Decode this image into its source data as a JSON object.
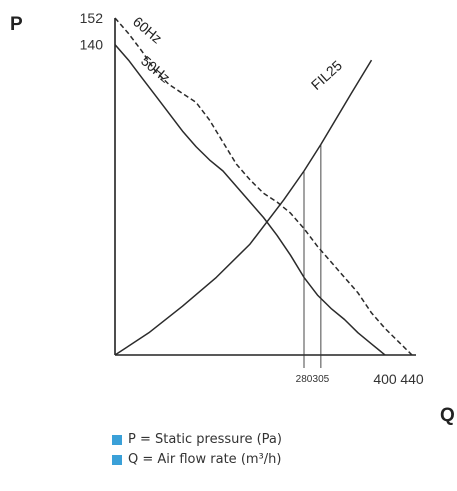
{
  "chart_data": {
    "type": "line",
    "y_axis_letter": "P",
    "x_axis_letter": "Q",
    "y_ticks": [
      {
        "value": 152,
        "label": "152"
      },
      {
        "value": 140,
        "label": "140"
      }
    ],
    "x_ticks": [
      {
        "value": 280,
        "label": "280",
        "small": true
      },
      {
        "value": 305,
        "label": "305",
        "small": true
      },
      {
        "value": 400,
        "label": "400"
      },
      {
        "value": 440,
        "label": "440"
      }
    ],
    "xlim": [
      0,
      440
    ],
    "ylim": [
      0,
      152
    ],
    "series": [
      {
        "name": "60Hz",
        "style": "dashed",
        "x": [
          0,
          20,
          40,
          60,
          80,
          100,
          120,
          140,
          160,
          180,
          200,
          220,
          240,
          260,
          280,
          300,
          320,
          340,
          360,
          380,
          400,
          420,
          440
        ],
        "y": [
          152,
          145,
          137,
          128,
          122,
          118,
          114,
          106,
          96,
          86,
          79,
          73,
          69,
          64,
          57,
          49,
          42,
          35,
          28,
          19,
          12,
          6,
          0
        ]
      },
      {
        "name": "50Hz",
        "style": "solid",
        "x": [
          0,
          20,
          40,
          60,
          80,
          100,
          120,
          140,
          160,
          180,
          200,
          220,
          240,
          260,
          280,
          300,
          320,
          340,
          360,
          380,
          400
        ],
        "y": [
          140,
          133,
          125,
          117,
          109,
          101,
          94,
          88,
          83,
          76,
          69,
          62,
          54,
          45,
          35,
          27,
          21,
          16,
          10,
          5,
          0
        ]
      },
      {
        "name": "FIL25",
        "style": "solid",
        "x": [
          0,
          50,
          100,
          150,
          200,
          250,
          280,
          305,
          350,
          380
        ],
        "y": [
          0,
          10,
          22,
          35,
          50,
          70,
          83,
          95,
          118,
          133
        ]
      }
    ],
    "markers": [
      280,
      305
    ]
  },
  "legend": [
    {
      "text": "P = Static pressure (Pa)",
      "color": "#3aa0d8"
    },
    {
      "text": "Q = Air flow rate (m³/h)",
      "color": "#3aa0d8"
    }
  ]
}
